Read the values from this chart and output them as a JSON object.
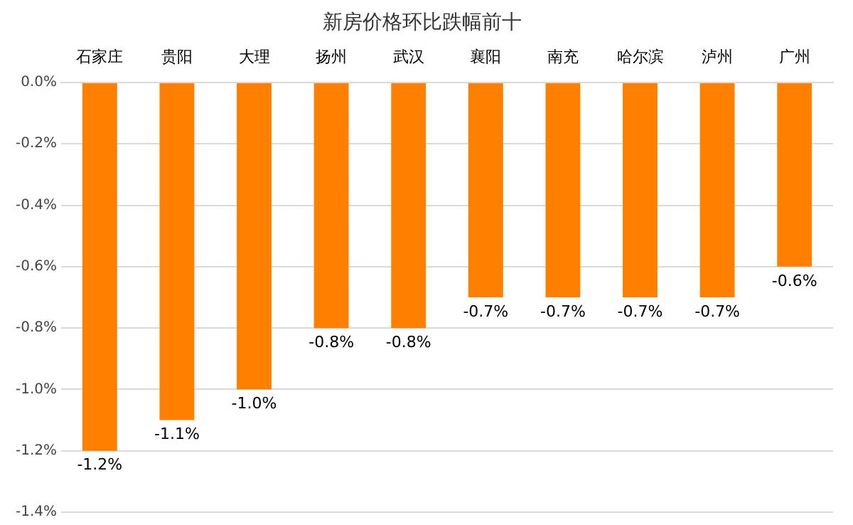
{
  "chart_data": {
    "type": "bar",
    "title": "新房价格环比跌幅前十",
    "categories": [
      "石家庄",
      "贵阳",
      "大理",
      "扬州",
      "武汉",
      "襄阳",
      "南充",
      "哈尔滨",
      "泸州",
      "广州"
    ],
    "values": [
      -1.2,
      -1.1,
      -1.0,
      -0.8,
      -0.8,
      -0.7,
      -0.7,
      -0.7,
      -0.7,
      -0.6
    ],
    "value_labels": [
      "-1.2%",
      "-1.1%",
      "-1.0%",
      "-0.8%",
      "-0.8%",
      "-0.7%",
      "-0.7%",
      "-0.7%",
      "-0.7%",
      "-0.6%"
    ],
    "color": "#ff7f00",
    "ylim": [
      -1.4,
      0
    ],
    "yticks": [
      {
        "value": 0,
        "label": "0.0%"
      },
      {
        "value": -0.2,
        "label": "-0.2%"
      },
      {
        "value": -0.4,
        "label": "-0.4%"
      },
      {
        "value": -0.6,
        "label": "-0.6%"
      },
      {
        "value": -0.8,
        "label": "-0.8%"
      },
      {
        "value": -1.0,
        "label": "-1.0%"
      },
      {
        "value": -1.2,
        "label": "-1.2%"
      },
      {
        "value": -1.4,
        "label": "-1.4%"
      }
    ],
    "grid": "y",
    "legend": false
  }
}
